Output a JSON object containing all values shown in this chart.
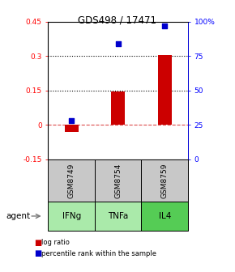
{
  "title": "GDS498 / 17471",
  "categories": [
    "IFNg",
    "TNFa",
    "IL4"
  ],
  "sample_ids": [
    "GSM8749",
    "GSM8754",
    "GSM8759"
  ],
  "log_ratios": [
    -0.03,
    0.145,
    0.305
  ],
  "percentile_ranks": [
    0.28,
    0.84,
    0.97
  ],
  "ylim_left": [
    -0.15,
    0.45
  ],
  "ylim_right": [
    0.0,
    1.0
  ],
  "yticks_left": [
    -0.15,
    0.0,
    0.15,
    0.3,
    0.45
  ],
  "yticks_right": [
    0.0,
    0.25,
    0.5,
    0.75,
    1.0
  ],
  "ytick_labels_right": [
    "0",
    "25",
    "50",
    "75",
    "100%"
  ],
  "ytick_labels_left": [
    "-0.15",
    "0",
    "0.15",
    "0.3",
    "0.45"
  ],
  "hlines": [
    0.15,
    0.3
  ],
  "bar_color": "#cc0000",
  "dot_color": "#0000cc",
  "zero_line_color": "#cc0000",
  "agent_colors": [
    "#aaeaaa",
    "#aaeaaa",
    "#55cc55"
  ],
  "sample_bg_color": "#c8c8c8",
  "legend_bar_label": "log ratio",
  "legend_dot_label": "percentile rank within the sample",
  "agent_label": "agent",
  "bar_width": 0.3
}
